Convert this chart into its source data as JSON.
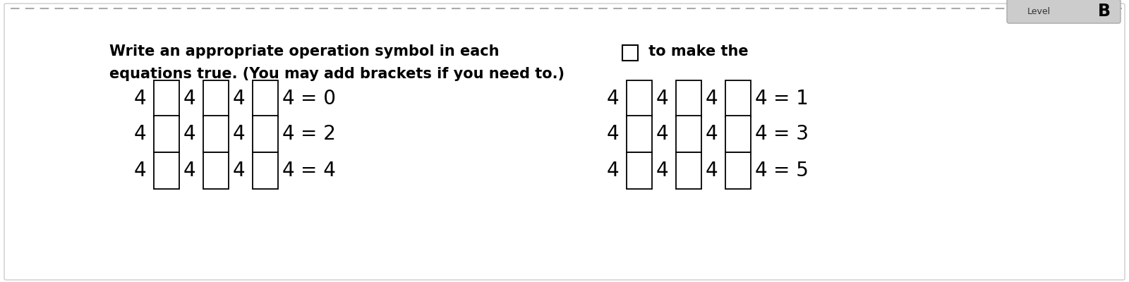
{
  "title_line1": "Write an appropriate operation symbol in each",
  "title_box_after": " to make the",
  "title_line2": "equations true. (You may add brackets if you need to.)",
  "background_color": "#ffffff",
  "border_color": "#cccccc",
  "box_color": "#ffffff",
  "box_edge_color": "#000000",
  "text_color": "#000000",
  "level_bg": "#c8c8c8",
  "level_text": "Level",
  "level_bold": "B",
  "dashed_color": "#aaaaaa",
  "equations": [
    {
      "row": 0,
      "col": 0,
      "result": "0"
    },
    {
      "row": 0,
      "col": 1,
      "result": "1"
    },
    {
      "row": 1,
      "col": 0,
      "result": "2"
    },
    {
      "row": 1,
      "col": 1,
      "result": "3"
    },
    {
      "row": 2,
      "col": 0,
      "result": "4"
    },
    {
      "row": 2,
      "col": 1,
      "result": "5"
    }
  ],
  "figsize": [
    16.0,
    4.0
  ],
  "dpi": 100
}
